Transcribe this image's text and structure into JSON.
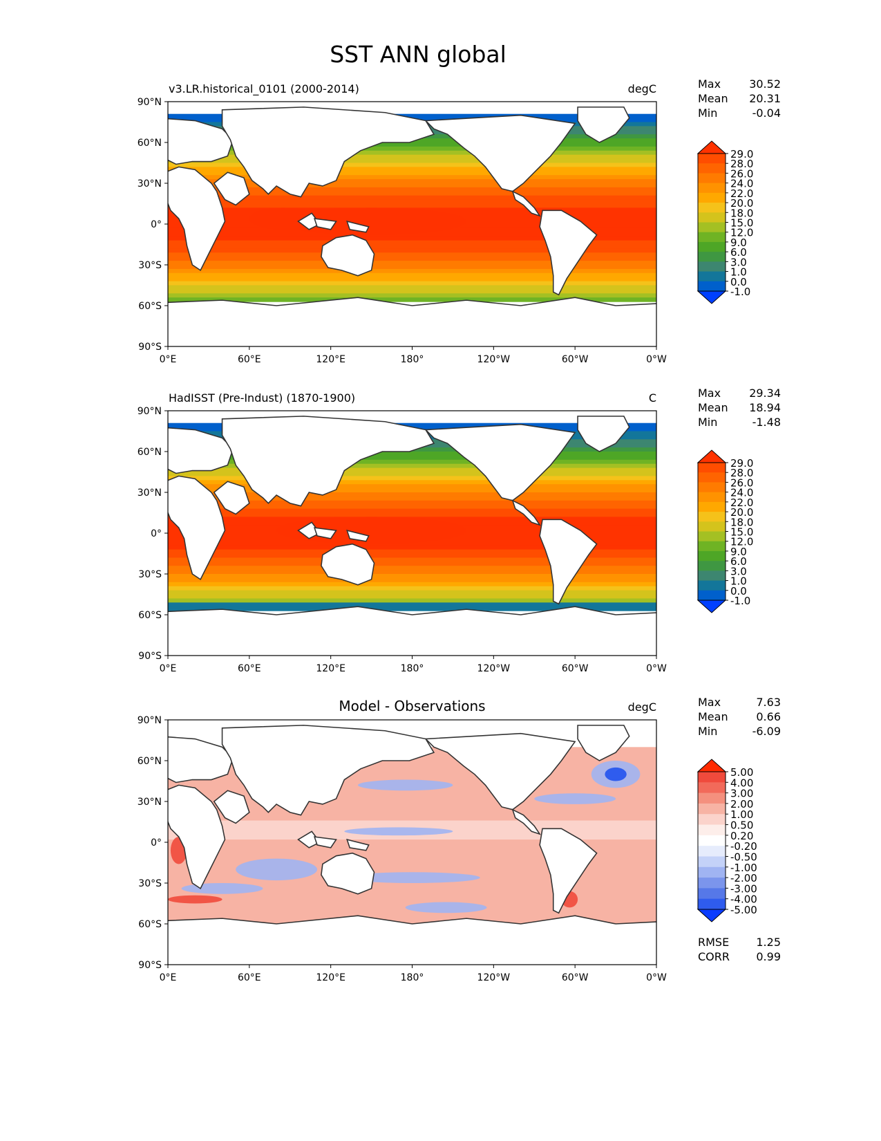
{
  "title": "SST ANN global",
  "lat_ticks": [
    "90°N",
    "60°N",
    "30°N",
    "0°",
    "30°S",
    "60°S",
    "90°S"
  ],
  "lon_ticks": [
    "0°E",
    "60°E",
    "120°E",
    "180°",
    "120°W",
    "60°W",
    "0°W"
  ],
  "stat_labels": {
    "max": "Max",
    "mean": "Mean",
    "min": "Min"
  },
  "panels": [
    {
      "left_title": "v3.LR.historical_0101 (2000-2014)",
      "center_title": "",
      "units": "degC",
      "stats": {
        "max": "30.52",
        "mean": "20.31",
        "min": "-0.04"
      },
      "colorbar_labels": [
        "29.0",
        "28.0",
        "26.0",
        "24.0",
        "22.0",
        "20.0",
        "18.0",
        "15.0",
        "12.0",
        "9.0",
        "6.0",
        "3.0",
        "1.0",
        "0.0",
        "-1.0"
      ],
      "colorbar_colors": [
        "#ff3300",
        "#ff4d00",
        "#ff6400",
        "#ff7b00",
        "#ff9200",
        "#ffa800",
        "#f5c21a",
        "#d4c31c",
        "#a4c023",
        "#6fb324",
        "#4ea626",
        "#3f9742",
        "#3d8670",
        "#13769a",
        "#0060cc",
        "#0040ff"
      ]
    },
    {
      "left_title": "HadISST (Pre-Indust) (1870-1900)",
      "center_title": "",
      "units": "C",
      "stats": {
        "max": "29.34",
        "mean": "18.94",
        "min": "-1.48"
      },
      "colorbar_labels": [
        "29.0",
        "28.0",
        "26.0",
        "24.0",
        "22.0",
        "20.0",
        "18.0",
        "15.0",
        "12.0",
        "9.0",
        "6.0",
        "3.0",
        "1.0",
        "0.0",
        "-1.0"
      ],
      "colorbar_colors": [
        "#ff3300",
        "#ff4d00",
        "#ff6400",
        "#ff7b00",
        "#ff9200",
        "#ffa800",
        "#f5c21a",
        "#d4c31c",
        "#a4c023",
        "#6fb324",
        "#4ea626",
        "#3f9742",
        "#3d8670",
        "#13769a",
        "#0060cc",
        "#0040ff"
      ]
    },
    {
      "left_title": "",
      "center_title": "Model - Observations",
      "units": "degC",
      "stats": {
        "max": "7.63",
        "mean": "0.66",
        "min": "-6.09"
      },
      "colorbar_labels": [
        "5.00",
        "4.00",
        "3.00",
        "2.00",
        "1.00",
        "0.50",
        "0.20",
        "-0.20",
        "-0.50",
        "-1.00",
        "-2.00",
        "-3.00",
        "-4.00",
        "-5.00"
      ],
      "colorbar_colors": [
        "#ff2a00",
        "#f04a3c",
        "#f26a5a",
        "#f4907e",
        "#f7b3a4",
        "#fbd3cb",
        "#fdeeea",
        "#ffffff",
        "#e6ecfc",
        "#c4d2f8",
        "#a0b4f2",
        "#7b95ec",
        "#5678e8",
        "#2f5cee",
        "#0a3cff"
      ],
      "extra_stats": [
        {
          "label": "RMSE",
          "value": "1.25"
        },
        {
          "label": "CORR",
          "value": "0.99"
        }
      ]
    }
  ]
}
